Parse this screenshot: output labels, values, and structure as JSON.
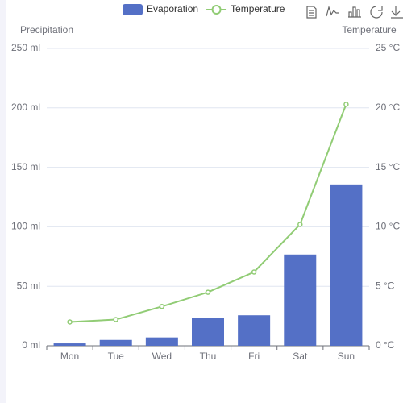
{
  "chart_data": {
    "type": "bar",
    "categories": [
      "Mon",
      "Tue",
      "Wed",
      "Thu",
      "Fri",
      "Sat",
      "Sun"
    ],
    "y_axis_name": "Precipitation",
    "y2_axis_name": "Temperature",
    "ylim": [
      0,
      250
    ],
    "yticks": [
      {
        "value": 0,
        "label": "0 ml"
      },
      {
        "value": 50,
        "label": "50 ml"
      },
      {
        "value": 100,
        "label": "100 ml"
      },
      {
        "value": 150,
        "label": "150 ml"
      },
      {
        "value": 200,
        "label": "200 ml"
      },
      {
        "value": 250,
        "label": "250 ml"
      }
    ],
    "y2lim": [
      0,
      25
    ],
    "y2ticks": [
      {
        "value": 0,
        "label": "0 °C"
      },
      {
        "value": 5,
        "label": "5 °C"
      },
      {
        "value": 10,
        "label": "10 °C"
      },
      {
        "value": 15,
        "label": "15 °C"
      },
      {
        "value": 20,
        "label": "20 °C"
      },
      {
        "value": 25,
        "label": "25 °C"
      }
    ],
    "grid": true,
    "series": [
      {
        "name": "Evaporation",
        "type": "bar",
        "color": "#5470c6",
        "values": [
          2,
          4.9,
          7,
          23.2,
          25.6,
          76.7,
          135.6
        ]
      },
      {
        "name": "Temperature",
        "type": "line",
        "axis": "y2",
        "color": "#91cc75",
        "values": [
          2.0,
          2.2,
          3.3,
          4.5,
          6.2,
          10.2,
          20.3
        ]
      }
    ]
  }
}
